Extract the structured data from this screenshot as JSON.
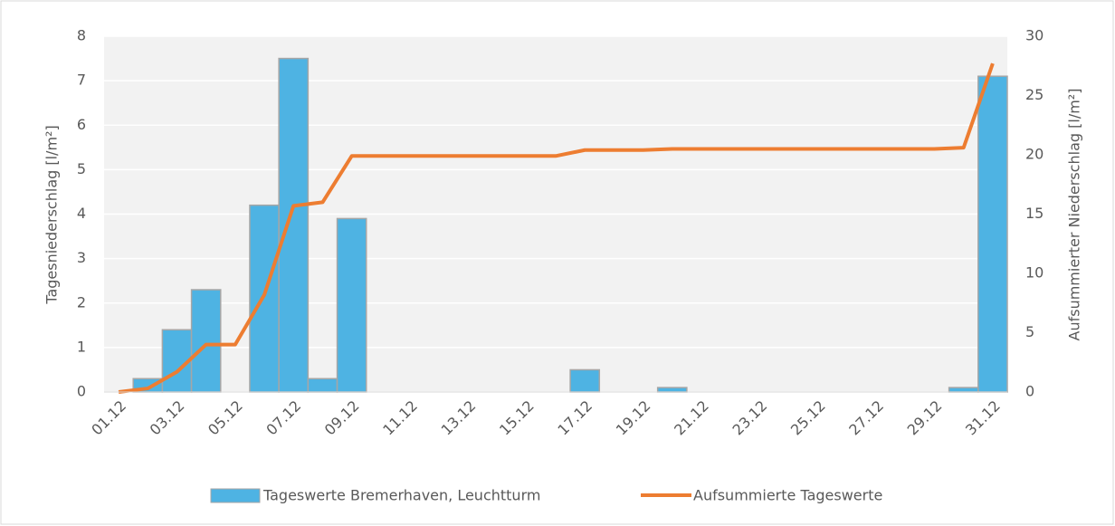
{
  "chart_data": {
    "type": "bar-line",
    "categories": [
      "01.12",
      null,
      "03.12",
      null,
      "05.12",
      null,
      "07.12",
      null,
      "09.12",
      null,
      "11.12",
      null,
      "13.12",
      null,
      "15.12",
      null,
      "17.12",
      null,
      "19.12",
      null,
      "21.12",
      null,
      "23.12",
      null,
      "25.12",
      null,
      "27.12",
      null,
      "29.12",
      null,
      "31.12"
    ],
    "series": [
      {
        "name": "Tageswerte Bremerhaven, Leuchtturm",
        "type": "bar",
        "color": "#4eb3e3",
        "axis": "y",
        "values": [
          0,
          0.3,
          1.4,
          2.3,
          0,
          4.2,
          7.5,
          0.3,
          3.9,
          0,
          0,
          0,
          0,
          0,
          0,
          0,
          0.5,
          0,
          0,
          0.1,
          0,
          0,
          0,
          0,
          0,
          0,
          0,
          0,
          0,
          0.1,
          7.1
        ]
      },
      {
        "name": "Aufsummierte Tageswerte",
        "type": "line",
        "color": "#ed7d31",
        "axis": "y2",
        "values": [
          0,
          0.3,
          1.7,
          4.0,
          4.0,
          8.2,
          15.7,
          16.0,
          19.9,
          19.9,
          19.9,
          19.9,
          19.9,
          19.9,
          19.9,
          19.9,
          20.4,
          20.4,
          20.4,
          20.5,
          20.5,
          20.5,
          20.5,
          20.5,
          20.5,
          20.5,
          20.5,
          20.5,
          20.5,
          20.6,
          27.7
        ]
      }
    ],
    "ylabel": "Tagesniederschlag [l/m²]",
    "y2label": "Aufsummierter Niederschlag [l/m²]",
    "ylim": [
      0,
      8
    ],
    "yticks": [
      0,
      1,
      2,
      3,
      4,
      5,
      6,
      7,
      8
    ],
    "y2lim": [
      0,
      30
    ],
    "y2ticks": [
      0,
      5,
      10,
      15,
      20,
      25,
      30
    ],
    "grid": true,
    "legend": "bottom"
  }
}
